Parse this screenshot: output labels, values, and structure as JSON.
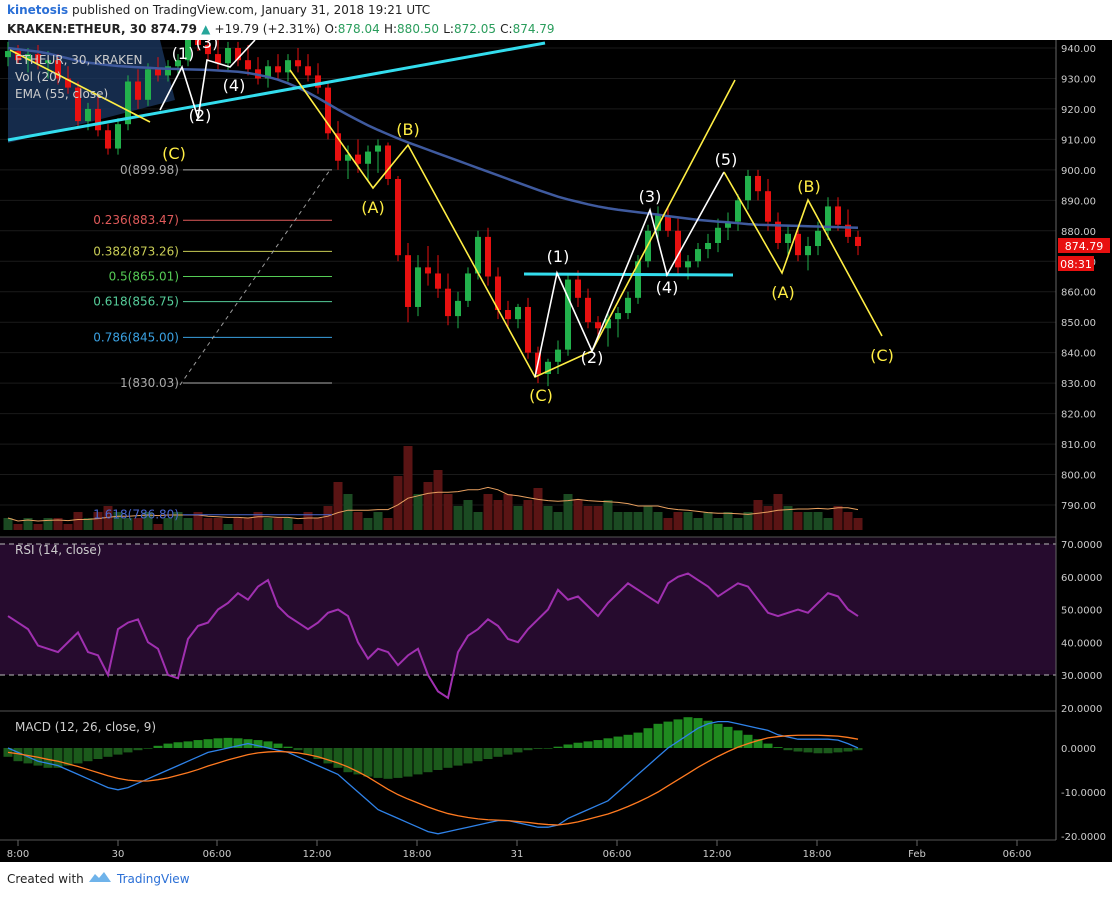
{
  "header": {
    "author": "kinetosis",
    "published": "published on TradingView.com, January 31, 2018 19:21 UTC",
    "symbol": "KRAKEN:ETHEUR, 30",
    "last": "874.79",
    "change": "+19.79 (+2.31%)",
    "o_label": "O:",
    "o": "878.04",
    "h_label": "H:",
    "h": "880.50",
    "l_label": "L:",
    "l": "872.05",
    "c_label": "C:",
    "c": "874.79"
  },
  "legend": {
    "main": "ETHEUR, 30, KRAKEN",
    "vol": "Vol (20)",
    "ema": "EMA (55, close)",
    "rsi": "RSI (14, close)",
    "macd": "MACD (12, 26, close, 9)"
  },
  "price_badges": {
    "last": "874.79",
    "countdown": "08:31"
  },
  "footer": {
    "created": "Created with",
    "brand": "TradingView"
  },
  "colors": {
    "background": "#000000",
    "up": "#22b14c",
    "down": "#e81010",
    "ema": "#3f5a9e",
    "trend": "#33ddee",
    "wave_yellow": "#ffee44",
    "wave_white": "#ffffff",
    "rsi": "#a030b0",
    "macd": "#2f82e8",
    "signal": "#ff7a20"
  },
  "chart_data": [
    {
      "type": "candlestick",
      "title": "KRAKEN:ETHEUR, 30",
      "y_ticks": [
        790,
        800,
        810,
        820,
        830,
        840,
        850,
        860,
        870,
        880,
        890,
        900,
        910,
        920,
        930,
        940
      ],
      "ylim": [
        782,
        942
      ],
      "x_ticks": [
        "8:00",
        "30",
        "06:00",
        "12:00",
        "18:00",
        "31",
        "06:00",
        "12:00",
        "18:00",
        "Feb",
        "06:00"
      ],
      "ohlc": [
        [
          937,
          942,
          934,
          939
        ],
        [
          939,
          941,
          935,
          936
        ],
        [
          936,
          940,
          932,
          938
        ],
        [
          938,
          941,
          933,
          935
        ],
        [
          935,
          939,
          930,
          936
        ],
        [
          936,
          938,
          928,
          930
        ],
        [
          930,
          934,
          925,
          927
        ],
        [
          927,
          929,
          914,
          916
        ],
        [
          916,
          922,
          913,
          920
        ],
        [
          920,
          924,
          911,
          913
        ],
        [
          913,
          915,
          905,
          907
        ],
        [
          907,
          917,
          905,
          915
        ],
        [
          915,
          931,
          913,
          929
        ],
        [
          929,
          933,
          920,
          923
        ],
        [
          923,
          935,
          921,
          933
        ],
        [
          933,
          937,
          929,
          931
        ],
        [
          931,
          936,
          929,
          934
        ],
        [
          934,
          938,
          931,
          936
        ],
        [
          936,
          945,
          934,
          943
        ],
        [
          943,
          948,
          939,
          941
        ],
        [
          941,
          945,
          936,
          938
        ],
        [
          938,
          943,
          933,
          935
        ],
        [
          935,
          942,
          932,
          940
        ],
        [
          940,
          942,
          934,
          936
        ],
        [
          936,
          941,
          931,
          933
        ],
        [
          933,
          937,
          928,
          930
        ],
        [
          930,
          936,
          927,
          934
        ],
        [
          934,
          938,
          930,
          932
        ],
        [
          932,
          938,
          929,
          936
        ],
        [
          936,
          940,
          932,
          934
        ],
        [
          934,
          938,
          929,
          931
        ],
        [
          931,
          935,
          925,
          927
        ],
        [
          927,
          929,
          910,
          912
        ],
        [
          912,
          916,
          900,
          903
        ],
        [
          903,
          908,
          897,
          905
        ],
        [
          905,
          910,
          899,
          902
        ],
        [
          902,
          908,
          896,
          906
        ],
        [
          906,
          910,
          899,
          908
        ],
        [
          908,
          909,
          895,
          897
        ],
        [
          897,
          898,
          870,
          872
        ],
        [
          872,
          876,
          850,
          855
        ],
        [
          855,
          872,
          852,
          868
        ],
        [
          868,
          875,
          862,
          866
        ],
        [
          866,
          872,
          858,
          861
        ],
        [
          861,
          866,
          849,
          852
        ],
        [
          852,
          860,
          848,
          857
        ],
        [
          857,
          868,
          855,
          866
        ],
        [
          866,
          880,
          864,
          878
        ],
        [
          878,
          881,
          862,
          865
        ],
        [
          865,
          868,
          851,
          854
        ],
        [
          854,
          857,
          848,
          851
        ],
        [
          851,
          856,
          848,
          855
        ],
        [
          855,
          858,
          838,
          840
        ],
        [
          840,
          842,
          830,
          833
        ],
        [
          833,
          838,
          829,
          837
        ],
        [
          837,
          844,
          833,
          841
        ],
        [
          841,
          866,
          839,
          864
        ],
        [
          864,
          867,
          855,
          858
        ],
        [
          858,
          861,
          848,
          850
        ],
        [
          850,
          852,
          845,
          848
        ],
        [
          848,
          853,
          842,
          851
        ],
        [
          851,
          855,
          845,
          853
        ],
        [
          853,
          860,
          851,
          858
        ],
        [
          858,
          872,
          856,
          870
        ],
        [
          870,
          882,
          868,
          880
        ],
        [
          880,
          888,
          877,
          885
        ],
        [
          885,
          888,
          878,
          880
        ],
        [
          880,
          884,
          866,
          868
        ],
        [
          868,
          872,
          864,
          870
        ],
        [
          870,
          876,
          868,
          874
        ],
        [
          874,
          879,
          871,
          876
        ],
        [
          876,
          884,
          873,
          881
        ],
        [
          881,
          886,
          877,
          883
        ],
        [
          883,
          892,
          880,
          890
        ],
        [
          890,
          900,
          887,
          898
        ],
        [
          898,
          900,
          890,
          893
        ],
        [
          893,
          897,
          880,
          883
        ],
        [
          883,
          886,
          874,
          876
        ],
        [
          876,
          882,
          872,
          879
        ],
        [
          879,
          882,
          870,
          872
        ],
        [
          872,
          878,
          867,
          875
        ],
        [
          875,
          883,
          872,
          880
        ],
        [
          880,
          891,
          877,
          888
        ],
        [
          888,
          891,
          880,
          882
        ],
        [
          882,
          887,
          876,
          878
        ],
        [
          878,
          880,
          872,
          875
        ]
      ],
      "series": [
        {
          "name": "EMA (55, close)",
          "values": [
            940,
            939.6,
            939.2,
            938.8,
            938.2,
            937.4,
            936.6,
            935.8,
            935.2,
            934.8,
            934.4,
            934.1,
            933.9,
            933.7,
            933.5,
            933.3,
            933.2,
            933.1,
            933,
            932.9,
            932.8,
            932.6,
            932.4,
            932.2,
            931.8,
            931.2,
            930.5,
            929.6,
            928.4,
            927,
            925.4,
            923.6,
            921.7,
            919.8,
            918,
            916.3,
            914.6,
            913.1,
            911.7,
            910.3,
            909,
            907.8,
            906.6,
            905.4,
            904.2,
            903,
            901.8,
            900.6,
            899.4,
            898.2,
            897,
            895.8,
            894.6,
            893.4,
            892.3,
            891.2,
            890.3,
            889.5,
            888.7,
            888,
            887.4,
            886.9,
            886.5,
            886.1,
            885.7,
            885.3,
            884.8,
            884.4,
            884,
            883.6,
            883.3,
            883,
            882.8,
            882.5,
            882.2,
            882,
            881.9,
            881.8,
            881.7,
            881.6,
            881.5,
            881.4,
            881.3,
            881.2,
            881.1,
            881
          ]
        }
      ],
      "fibonacci": [
        {
          "label": "0(899.98)",
          "value": 899.98
        },
        {
          "label": "0.236(883.47)",
          "value": 883.47
        },
        {
          "label": "0.382(873.26)",
          "value": 873.26
        },
        {
          "label": "0.5(865.01)",
          "value": 865.01
        },
        {
          "label": "0.618(856.75)",
          "value": 856.75
        },
        {
          "label": "0.786(845.00)",
          "value": 845.0
        },
        {
          "label": "1(830.03)",
          "value": 830.03
        },
        {
          "label": "1.618(786.80)",
          "value": 786.8
        }
      ],
      "wave_labels": [
        {
          "label": "(1)",
          "color": "white"
        },
        {
          "label": "(3)",
          "color": "white"
        },
        {
          "label": "(4)",
          "color": "white"
        },
        {
          "label": "(2)",
          "color": "white"
        },
        {
          "label": "(C)",
          "color": "yellow"
        },
        {
          "label": "(A)",
          "color": "yellow"
        },
        {
          "label": "(B)",
          "color": "yellow"
        },
        {
          "label": "(C)",
          "color": "yellow"
        },
        {
          "label": "(1)",
          "color": "white"
        },
        {
          "label": "(2)",
          "color": "white"
        },
        {
          "label": "(3)",
          "color": "white"
        },
        {
          "label": "(4)",
          "color": "white"
        },
        {
          "label": "(5)",
          "color": "white"
        },
        {
          "label": "(A)",
          "color": "yellow"
        },
        {
          "label": "(B)",
          "color": "yellow"
        },
        {
          "label": "(C)",
          "color": "yellow"
        }
      ]
    },
    {
      "type": "bar",
      "title": "Vol (20)",
      "values": [
        2,
        1,
        2,
        1,
        2,
        2,
        1,
        3,
        2,
        3,
        4,
        3,
        2,
        2,
        3,
        1,
        2,
        3,
        2,
        3,
        2,
        2,
        1,
        2,
        2,
        3,
        2,
        2,
        2,
        1,
        3,
        2,
        4,
        8,
        6,
        3,
        2,
        3,
        2,
        9,
        14,
        6,
        8,
        10,
        6,
        4,
        5,
        3,
        6,
        5,
        6,
        4,
        5,
        7,
        4,
        3,
        6,
        5,
        4,
        4,
        5,
        3,
        3,
        3,
        4,
        3,
        2,
        3,
        3,
        2,
        3,
        2,
        3,
        2,
        3,
        5,
        4,
        6,
        4,
        3,
        3,
        3,
        2,
        4,
        3,
        2
      ]
    },
    {
      "type": "line",
      "title": "RSI (14, close)",
      "y_ticks": [
        20,
        30,
        40,
        50,
        60,
        70
      ],
      "ylim": [
        20,
        70
      ],
      "values": [
        48,
        46,
        44,
        39,
        38,
        37,
        40,
        43,
        37,
        36,
        30,
        44,
        46,
        47,
        40,
        38,
        30,
        29,
        41,
        45,
        46,
        50,
        52,
        55,
        53,
        57,
        59,
        51,
        48,
        46,
        44,
        46,
        49,
        50,
        48,
        40,
        35,
        38,
        37,
        33,
        36,
        38,
        30,
        25,
        23,
        37,
        42,
        44,
        47,
        45,
        41,
        40,
        44,
        47,
        50,
        56,
        53,
        54,
        51,
        48,
        52,
        55,
        58,
        56,
        54,
        52,
        58,
        60,
        61,
        59,
        57,
        54,
        56,
        58,
        57,
        53,
        49,
        48,
        49,
        50,
        49,
        52,
        55,
        54,
        50,
        48
      ]
    },
    {
      "type": "bar",
      "title": "MACD (12, 26, close, 9)",
      "y_ticks": [
        -20,
        -10,
        0
      ],
      "ylim": [
        -22,
        10
      ],
      "histogram": [
        -2,
        -3,
        -3.5,
        -4,
        -4.5,
        -4.5,
        -4,
        -3.5,
        -3,
        -2.5,
        -2,
        -1.5,
        -1,
        -0.5,
        0,
        0.5,
        1,
        1.3,
        1.5,
        1.8,
        2,
        2.2,
        2.3,
        2.2,
        2,
        1.8,
        1.5,
        1,
        0.3,
        -0.5,
        -1.5,
        -2.5,
        -3.5,
        -4.5,
        -5.5,
        -6,
        -6.5,
        -6.8,
        -7,
        -6.8,
        -6.5,
        -6,
        -5.5,
        -5,
        -4.5,
        -4,
        -3.5,
        -3,
        -2.5,
        -2,
        -1.5,
        -1,
        -0.5,
        -0.2,
        0,
        0.3,
        0.8,
        1.2,
        1.5,
        1.8,
        2.2,
        2.6,
        3,
        3.5,
        4.5,
        5.5,
        6,
        6.5,
        7,
        6.8,
        6.2,
        5.5,
        4.8,
        4,
        3,
        2,
        1,
        0.2,
        -0.5,
        -0.8,
        -1,
        -1.2,
        -1.2,
        -1,
        -0.8,
        -0.5
      ],
      "series": [
        {
          "name": "MACD",
          "values": [
            0,
            -1,
            -2,
            -3,
            -3.5,
            -4,
            -5,
            -6,
            -7,
            -8,
            -9,
            -9.5,
            -9,
            -8,
            -7,
            -6,
            -5,
            -4,
            -3,
            -2,
            -1,
            -0.5,
            0,
            0.5,
            1,
            0.5,
            0,
            -0.5,
            -1,
            -2,
            -3,
            -4,
            -5,
            -6,
            -8,
            -10,
            -12,
            -14,
            -15,
            -16,
            -17,
            -18,
            -19,
            -19.5,
            -19,
            -18.5,
            -18,
            -17.5,
            -17,
            -16.5,
            -16.5,
            -17,
            -17.5,
            -18,
            -18,
            -17.5,
            -16,
            -15,
            -14,
            -13,
            -12,
            -10,
            -8,
            -6,
            -4,
            -2,
            0,
            1.5,
            3,
            4.5,
            5.5,
            6,
            6,
            5.5,
            5,
            4.5,
            4,
            3,
            2.5,
            2,
            2,
            2,
            2,
            1.8,
            1,
            0
          ]
        },
        {
          "name": "Signal",
          "values": [
            -1,
            -1.3,
            -1.7,
            -2.1,
            -2.6,
            -3,
            -3.6,
            -4.2,
            -4.9,
            -5.6,
            -6.3,
            -6.9,
            -7.3,
            -7.5,
            -7.5,
            -7.2,
            -6.8,
            -6.2,
            -5.6,
            -4.9,
            -4.1,
            -3.4,
            -2.7,
            -2.1,
            -1.5,
            -1.1,
            -0.9,
            -0.8,
            -0.9,
            -1.1,
            -1.5,
            -2,
            -2.7,
            -3.4,
            -4.3,
            -5.4,
            -6.6,
            -8,
            -9.4,
            -10.6,
            -11.6,
            -12.5,
            -13.4,
            -14.2,
            -14.9,
            -15.4,
            -15.8,
            -16.1,
            -16.3,
            -16.4,
            -16.5,
            -16.7,
            -16.9,
            -17.2,
            -17.4,
            -17.5,
            -17.2,
            -16.8,
            -16.2,
            -15.6,
            -15,
            -14.2,
            -13.3,
            -12.3,
            -11.2,
            -10,
            -8.6,
            -7.2,
            -5.8,
            -4.4,
            -3.1,
            -1.9,
            -0.8,
            0.2,
            1,
            1.7,
            2.3,
            2.6,
            2.8,
            2.9,
            2.9,
            2.9,
            2.8,
            2.7,
            2.4,
            2
          ]
        }
      ]
    }
  ]
}
